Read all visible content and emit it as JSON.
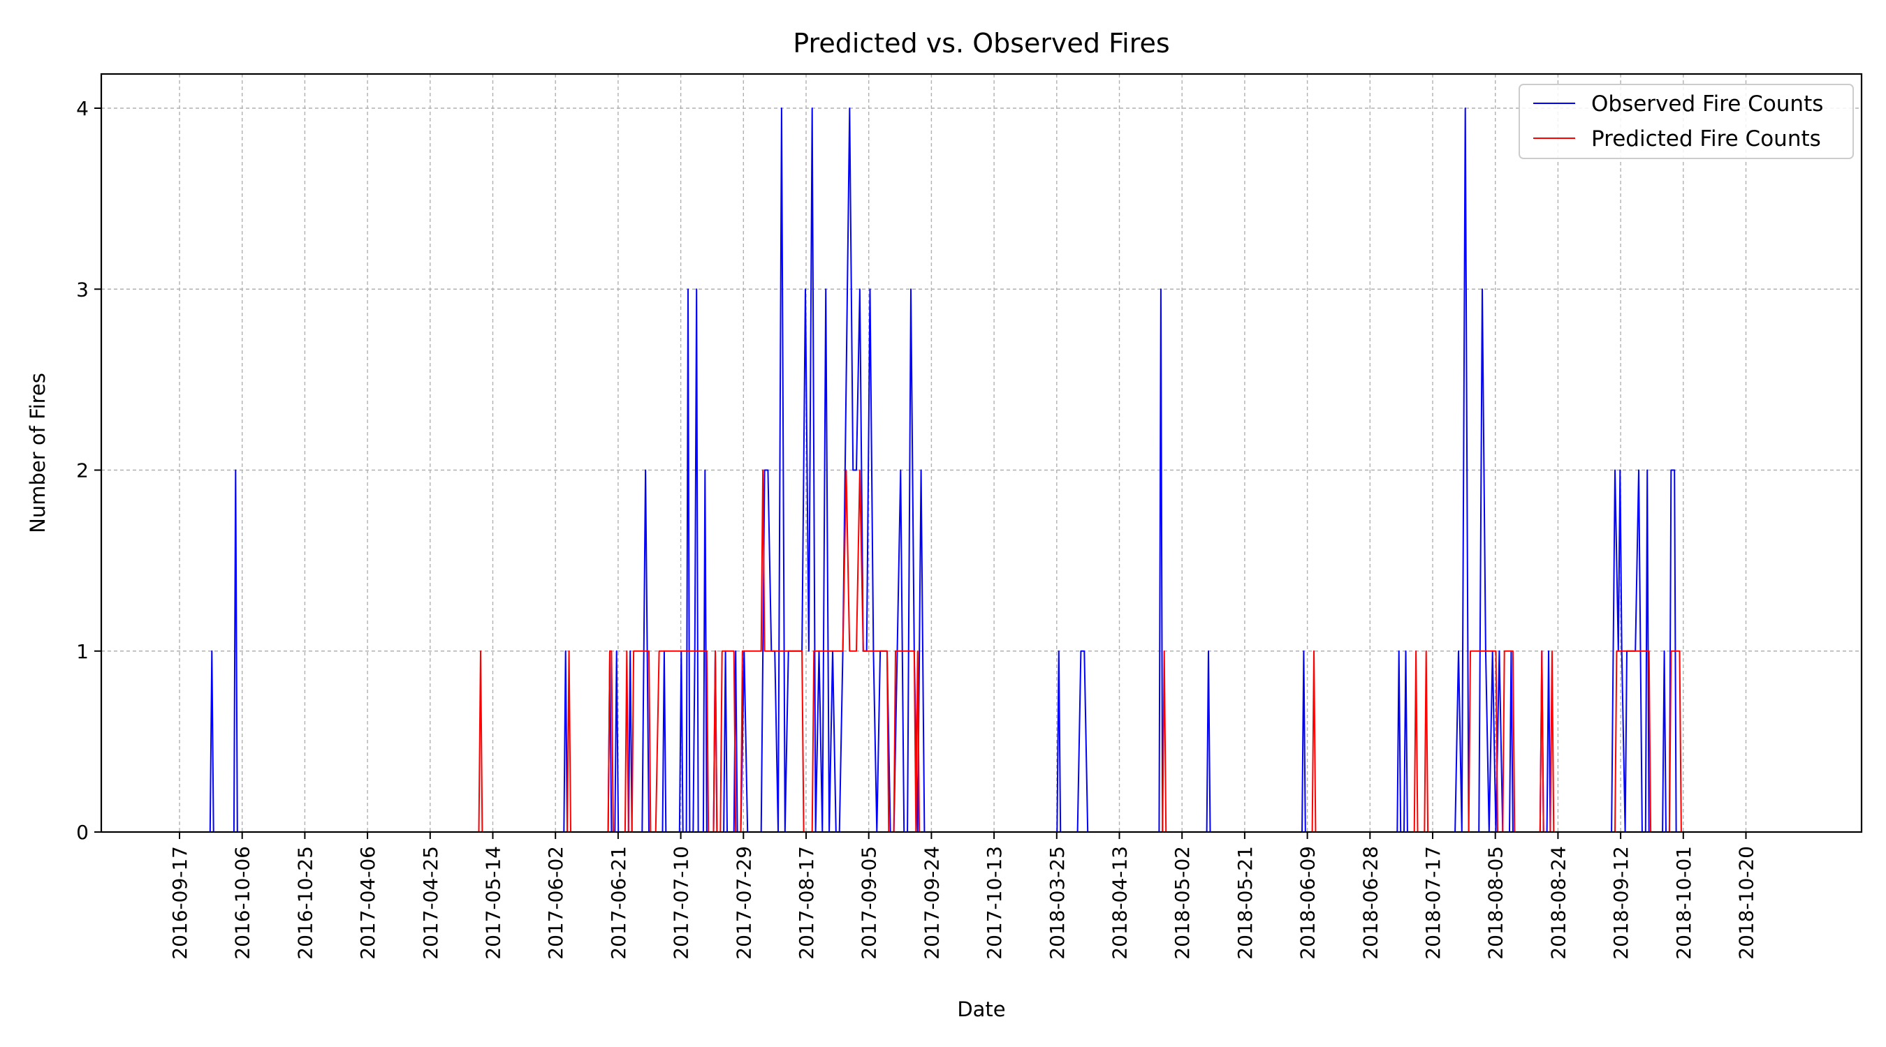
{
  "chart_data": {
    "type": "line",
    "title": "Predicted vs. Observed Fires",
    "xlabel": "Date",
    "ylabel": "Number of Fires",
    "ylim": [
      0,
      4.2
    ],
    "yticks": [
      "0",
      "1",
      "2",
      "3",
      "4"
    ],
    "xticks": [
      "2016-09-17",
      "2016-10-06",
      "2016-10-25",
      "2017-04-06",
      "2017-04-25",
      "2017-05-14",
      "2017-06-02",
      "2017-06-21",
      "2017-07-10",
      "2017-07-29",
      "2017-08-17",
      "2017-09-05",
      "2017-09-24",
      "2017-10-13",
      "2018-03-25",
      "2018-04-13",
      "2018-05-02",
      "2018-05-21",
      "2018-06-09",
      "2018-06-28",
      "2018-07-17",
      "2018-08-05",
      "2018-08-24",
      "2018-09-12",
      "2018-10-01",
      "2018-10-20"
    ],
    "grid": true,
    "legend_position": "top-right",
    "series": [
      {
        "name": "Observed Fire Counts",
        "color": "#0000ff",
        "points": [
          [
            0,
            0
          ],
          [
            9,
            0
          ],
          [
            9.5,
            1
          ],
          [
            10,
            0
          ],
          [
            16,
            0
          ],
          [
            16.5,
            2
          ],
          [
            17,
            0
          ],
          [
            113,
            0
          ],
          [
            113.5,
            1
          ],
          [
            114,
            0
          ],
          [
            126,
            0
          ],
          [
            126.5,
            1
          ],
          [
            127,
            0
          ],
          [
            128,
            0
          ],
          [
            128.5,
            1
          ],
          [
            129,
            0
          ],
          [
            132,
            0
          ],
          [
            132.5,
            1
          ],
          [
            133,
            0
          ],
          [
            136,
            0
          ],
          [
            136.5,
            1
          ],
          [
            137,
            2
          ],
          [
            137.5,
            1
          ],
          [
            138,
            0
          ],
          [
            142,
            0
          ],
          [
            142.5,
            1
          ],
          [
            143,
            0
          ],
          [
            147,
            0
          ],
          [
            147.5,
            1
          ],
          [
            148,
            0
          ],
          [
            149,
            0
          ],
          [
            149.5,
            3
          ],
          [
            150,
            0
          ],
          [
            151,
            0
          ],
          [
            151.5,
            1
          ],
          [
            152,
            3
          ],
          [
            152.5,
            0
          ],
          [
            154,
            0
          ],
          [
            154.5,
            2
          ],
          [
            155,
            0
          ],
          [
            157,
            0
          ],
          [
            157.5,
            1
          ],
          [
            158,
            0
          ],
          [
            160,
            0
          ],
          [
            160.5,
            1
          ],
          [
            161,
            0
          ],
          [
            163,
            0
          ],
          [
            163.5,
            1
          ],
          [
            164,
            0
          ],
          [
            165,
            0
          ],
          [
            166,
            1
          ],
          [
            167,
            0
          ],
          [
            171,
            0
          ],
          [
            172,
            2
          ],
          [
            173,
            2
          ],
          [
            174,
            1
          ],
          [
            175,
            1
          ],
          [
            176,
            0
          ],
          [
            177,
            4
          ],
          [
            178,
            0
          ],
          [
            179,
            1
          ],
          [
            183,
            1
          ],
          [
            184,
            3
          ],
          [
            185,
            1
          ],
          [
            186,
            4
          ],
          [
            187,
            0
          ],
          [
            188,
            1
          ],
          [
            189,
            0
          ],
          [
            190,
            3
          ],
          [
            191,
            0
          ],
          [
            192,
            1
          ],
          [
            193,
            0
          ],
          [
            194,
            0
          ],
          [
            195,
            1
          ],
          [
            197,
            4
          ],
          [
            198,
            2
          ],
          [
            199,
            2
          ],
          [
            200,
            3
          ],
          [
            201,
            1
          ],
          [
            202,
            1
          ],
          [
            203,
            3
          ],
          [
            204,
            1
          ],
          [
            205,
            0
          ],
          [
            206,
            1
          ],
          [
            208,
            1
          ],
          [
            209,
            0
          ],
          [
            210,
            0
          ],
          [
            211,
            1
          ],
          [
            212,
            2
          ],
          [
            213,
            0
          ],
          [
            214,
            0
          ],
          [
            215,
            3
          ],
          [
            216,
            1
          ],
          [
            217,
            0
          ],
          [
            218,
            2
          ],
          [
            219,
            0
          ],
          [
            220,
            0
          ],
          [
            258,
            0
          ],
          [
            258.5,
            1
          ],
          [
            259,
            0
          ],
          [
            264,
            0
          ],
          [
            265,
            1
          ],
          [
            266,
            1
          ],
          [
            267,
            0
          ],
          [
            288,
            0
          ],
          [
            288.5,
            3
          ],
          [
            289,
            0
          ],
          [
            302,
            0
          ],
          [
            302.5,
            1
          ],
          [
            303,
            0
          ],
          [
            330,
            0
          ],
          [
            330.5,
            1
          ],
          [
            331,
            0
          ],
          [
            358,
            0
          ],
          [
            358.5,
            1
          ],
          [
            359,
            0
          ],
          [
            360,
            0
          ],
          [
            360.5,
            1
          ],
          [
            361,
            0
          ],
          [
            375,
            0
          ],
          [
            376,
            1
          ],
          [
            377,
            0
          ],
          [
            378,
            4
          ],
          [
            379,
            0
          ],
          [
            382,
            0
          ],
          [
            383,
            3
          ],
          [
            384,
            1
          ],
          [
            385,
            0
          ],
          [
            386,
            1
          ],
          [
            387,
            0
          ],
          [
            388,
            1
          ],
          [
            389,
            0
          ],
          [
            391,
            0
          ],
          [
            391.5,
            1
          ],
          [
            392,
            0
          ],
          [
            400,
            0
          ],
          [
            400.5,
            1
          ],
          [
            401,
            0
          ],
          [
            402,
            0
          ],
          [
            402.5,
            1
          ],
          [
            403,
            0
          ],
          [
            421,
            0
          ],
          [
            421.5,
            1
          ],
          [
            422,
            2
          ],
          [
            423,
            1
          ],
          [
            423.5,
            2
          ],
          [
            424,
            1
          ],
          [
            425,
            0
          ],
          [
            425.5,
            1
          ],
          [
            426,
            1
          ],
          [
            428,
            1
          ],
          [
            429,
            2
          ],
          [
            429.5,
            1
          ],
          [
            430,
            0
          ],
          [
            431,
            0
          ],
          [
            431.5,
            2
          ],
          [
            432,
            0
          ],
          [
            436,
            0
          ],
          [
            436.5,
            1
          ],
          [
            437,
            0
          ],
          [
            438,
            0
          ],
          [
            438.5,
            2
          ],
          [
            439.5,
            2
          ],
          [
            440,
            0
          ],
          [
            460,
            0
          ]
        ]
      },
      {
        "name": "Predicted Fire Counts",
        "color": "#ff0000",
        "points": [
          [
            0,
            0
          ],
          [
            88,
            0
          ],
          [
            88.5,
            1
          ],
          [
            89,
            0
          ],
          [
            114,
            0
          ],
          [
            114.5,
            1
          ],
          [
            115,
            0
          ],
          [
            126,
            0
          ],
          [
            126.5,
            1
          ],
          [
            127,
            1
          ],
          [
            127.5,
            0
          ],
          [
            131,
            0
          ],
          [
            131.5,
            1
          ],
          [
            132,
            0
          ],
          [
            133,
            0
          ],
          [
            133.5,
            1
          ],
          [
            138,
            1
          ],
          [
            138.5,
            0
          ],
          [
            140,
            0
          ],
          [
            141,
            1
          ],
          [
            149,
            1
          ],
          [
            150.5,
            1
          ],
          [
            152,
            1
          ],
          [
            153,
            1
          ],
          [
            155,
            1
          ],
          [
            155.5,
            0
          ],
          [
            157,
            0
          ],
          [
            157.5,
            1
          ],
          [
            158,
            0
          ],
          [
            159,
            0
          ],
          [
            159.5,
            1
          ],
          [
            163,
            1
          ],
          [
            163.5,
            0
          ],
          [
            165,
            0
          ],
          [
            165.5,
            1
          ],
          [
            169,
            1
          ],
          [
            170,
            1
          ],
          [
            171,
            1
          ],
          [
            171.5,
            2
          ],
          [
            172,
            1
          ],
          [
            183,
            1
          ],
          [
            183.5,
            0
          ],
          [
            186,
            0
          ],
          [
            186.5,
            1
          ],
          [
            192,
            1
          ],
          [
            193,
            1
          ],
          [
            194,
            1
          ],
          [
            195,
            1
          ],
          [
            196,
            2
          ],
          [
            197,
            1
          ],
          [
            199,
            1
          ],
          [
            200,
            2
          ],
          [
            201,
            1
          ],
          [
            204,
            1
          ],
          [
            205,
            1
          ],
          [
            208,
            1
          ],
          [
            208.5,
            0
          ],
          [
            210,
            0
          ],
          [
            210.5,
            1
          ],
          [
            214,
            1
          ],
          [
            216,
            1
          ],
          [
            216.5,
            0
          ],
          [
            217,
            1
          ],
          [
            217.5,
            0
          ],
          [
            289,
            0
          ],
          [
            289.5,
            1
          ],
          [
            290,
            0
          ],
          [
            333,
            0
          ],
          [
            333.5,
            1
          ],
          [
            334,
            0
          ],
          [
            363,
            0
          ],
          [
            363.5,
            1
          ],
          [
            364,
            0
          ],
          [
            366,
            0
          ],
          [
            366.5,
            1
          ],
          [
            367,
            0
          ],
          [
            379,
            0
          ],
          [
            379.5,
            1
          ],
          [
            387,
            1
          ],
          [
            387.5,
            0
          ],
          [
            389,
            0
          ],
          [
            389.5,
            1
          ],
          [
            392,
            1
          ],
          [
            392.5,
            0
          ],
          [
            400,
            0
          ],
          [
            400.5,
            1
          ],
          [
            401,
            0
          ],
          [
            403,
            0
          ],
          [
            403.5,
            1
          ],
          [
            404,
            0
          ],
          [
            422,
            0
          ],
          [
            422.5,
            1
          ],
          [
            432,
            1
          ],
          [
            432.5,
            0
          ],
          [
            438,
            0
          ],
          [
            438.5,
            1
          ],
          [
            441,
            1
          ],
          [
            441.5,
            0
          ],
          [
            460,
            0
          ]
        ]
      }
    ]
  }
}
